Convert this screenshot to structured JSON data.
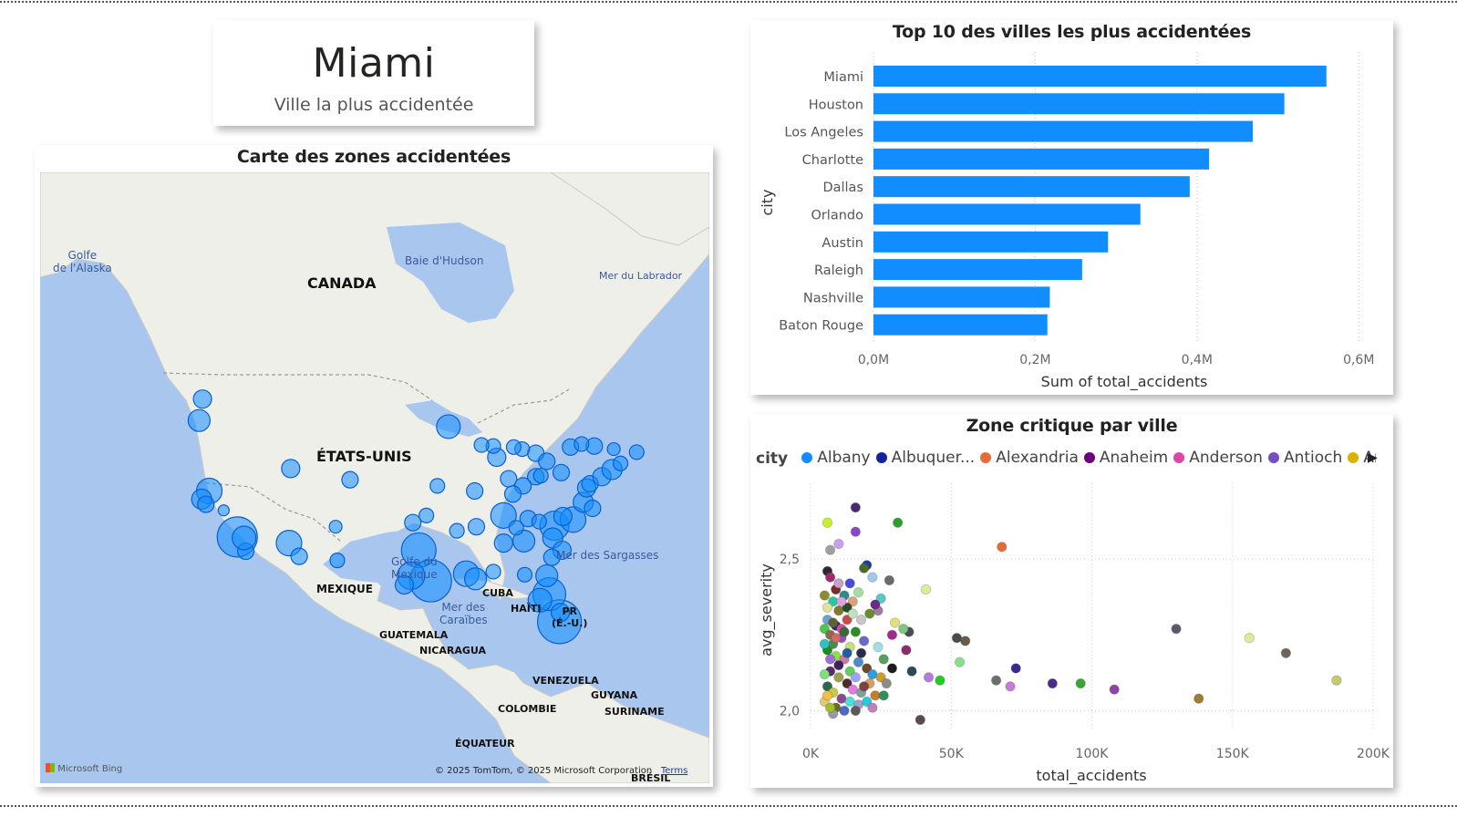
{
  "kpi": {
    "value": "Miami",
    "label": "Ville la plus accidentée"
  },
  "map": {
    "title": "Carte des zones accidentées",
    "labels": {
      "gulf_alaska": "Golfe\nde l'Alaska",
      "hudson": "Baie d'Hudson",
      "labrador": "Mer du Labrador",
      "canada": "CANADA",
      "usa": "ÉTATS-UNIS",
      "mexico_gulf": "Golfe du\nMexique",
      "mexico": "MEXIQUE",
      "sargasso": "Mer des Sargasses",
      "cuba": "CUBA",
      "haiti": "HAÏTI",
      "pr": "PR\n(É.-U.)",
      "caribbean": "Mer des\nCaraïbes",
      "guatemala": "GUATEMALA",
      "nicaragua": "NICARAGUA",
      "venezuela": "VENEZUELA",
      "guyana": "GUYANA",
      "suriname": "SURINAME",
      "colombia": "COLOMBIE",
      "ecuador": "ÉQUATEUR",
      "brazil": "BRÉSIL"
    },
    "logo": "Microsoft Bing",
    "copyright": "© 2025 TomTom, © 2025 Microsoft Corporation",
    "terms": "Terms",
    "colors": {
      "water": "#a9c7ee",
      "land": "#efefea",
      "bubble": "#118dff"
    },
    "bubbles": [
      {
        "lon": -122.3,
        "lat": 47.6,
        "size": 10
      },
      {
        "lon": -122.7,
        "lat": 45.5,
        "size": 12
      },
      {
        "lon": -121.5,
        "lat": 38.6,
        "size": 14
      },
      {
        "lon": -122.4,
        "lat": 37.8,
        "size": 11
      },
      {
        "lon": -121.9,
        "lat": 37.3,
        "size": 9
      },
      {
        "lon": -118.2,
        "lat": 34.1,
        "size": 22
      },
      {
        "lon": -117.2,
        "lat": 32.7,
        "size": 9
      },
      {
        "lon": -117.4,
        "lat": 34.0,
        "size": 13
      },
      {
        "lon": -119.8,
        "lat": 36.7,
        "size": 6
      },
      {
        "lon": -112.1,
        "lat": 33.5,
        "size": 14
      },
      {
        "lon": -110.9,
        "lat": 32.2,
        "size": 9
      },
      {
        "lon": -111.9,
        "lat": 40.8,
        "size": 10
      },
      {
        "lon": -104.9,
        "lat": 39.7,
        "size": 9
      },
      {
        "lon": -106.6,
        "lat": 35.1,
        "size": 7
      },
      {
        "lon": -106.4,
        "lat": 31.8,
        "size": 8
      },
      {
        "lon": -96.8,
        "lat": 32.8,
        "size": 19
      },
      {
        "lon": -95.4,
        "lat": 29.8,
        "size": 23
      },
      {
        "lon": -97.7,
        "lat": 30.3,
        "size": 15
      },
      {
        "lon": -98.5,
        "lat": 29.4,
        "size": 10
      },
      {
        "lon": -97.5,
        "lat": 35.5,
        "size": 9
      },
      {
        "lon": -95.9,
        "lat": 36.2,
        "size": 8
      },
      {
        "lon": -94.6,
        "lat": 39.1,
        "size": 8
      },
      {
        "lon": -93.3,
        "lat": 44.9,
        "size": 13
      },
      {
        "lon": -90.2,
        "lat": 38.6,
        "size": 9
      },
      {
        "lon": -91.2,
        "lat": 30.5,
        "size": 14
      },
      {
        "lon": -90.1,
        "lat": 30.0,
        "size": 12
      },
      {
        "lon": -90.0,
        "lat": 35.1,
        "size": 9
      },
      {
        "lon": -86.8,
        "lat": 36.2,
        "size": 14
      },
      {
        "lon": -86.8,
        "lat": 33.5,
        "size": 10
      },
      {
        "lon": -84.4,
        "lat": 33.7,
        "size": 12
      },
      {
        "lon": -80.8,
        "lat": 35.2,
        "size": 16
      },
      {
        "lon": -78.6,
        "lat": 35.8,
        "size": 14
      },
      {
        "lon": -79.8,
        "lat": 36.1,
        "size": 10
      },
      {
        "lon": -81.0,
        "lat": 34.0,
        "size": 11
      },
      {
        "lon": -80.2,
        "lat": 25.8,
        "size": 24
      },
      {
        "lon": -81.4,
        "lat": 28.5,
        "size": 18
      },
      {
        "lon": -82.5,
        "lat": 27.9,
        "size": 13
      },
      {
        "lon": -81.7,
        "lat": 30.3,
        "size": 12
      },
      {
        "lon": -80.1,
        "lat": 26.7,
        "size": 10
      },
      {
        "lon": -84.3,
        "lat": 30.4,
        "size": 8
      },
      {
        "lon": -87.6,
        "lat": 41.9,
        "size": 10
      },
      {
        "lon": -86.2,
        "lat": 39.8,
        "size": 9
      },
      {
        "lon": -83.0,
        "lat": 40.0,
        "size": 9
      },
      {
        "lon": -84.5,
        "lat": 39.1,
        "size": 9
      },
      {
        "lon": -83.0,
        "lat": 42.3,
        "size": 9
      },
      {
        "lon": -81.7,
        "lat": 41.5,
        "size": 9
      },
      {
        "lon": -80.0,
        "lat": 40.4,
        "size": 9
      },
      {
        "lon": -77.4,
        "lat": 37.5,
        "size": 11
      },
      {
        "lon": -76.3,
        "lat": 36.9,
        "size": 9
      },
      {
        "lon": -77.0,
        "lat": 38.9,
        "size": 10
      },
      {
        "lon": -76.6,
        "lat": 39.3,
        "size": 9
      },
      {
        "lon": -75.2,
        "lat": 40.0,
        "size": 10
      },
      {
        "lon": -74.0,
        "lat": 40.7,
        "size": 11
      },
      {
        "lon": -73.0,
        "lat": 41.3,
        "size": 8
      },
      {
        "lon": -71.1,
        "lat": 42.4,
        "size": 8
      },
      {
        "lon": -73.8,
        "lat": 42.7,
        "size": 7
      },
      {
        "lon": -76.1,
        "lat": 43.0,
        "size": 9
      },
      {
        "lon": -78.9,
        "lat": 42.9,
        "size": 9
      },
      {
        "lon": -88.0,
        "lat": 43.0,
        "size": 8
      },
      {
        "lon": -89.4,
        "lat": 43.1,
        "size": 8
      },
      {
        "lon": -85.7,
        "lat": 38.3,
        "size": 9
      },
      {
        "lon": -83.9,
        "lat": 35.9,
        "size": 9
      },
      {
        "lon": -82.6,
        "lat": 35.6,
        "size": 8
      },
      {
        "lon": -79.9,
        "lat": 32.8,
        "size": 10
      },
      {
        "lon": -81.1,
        "lat": 32.1,
        "size": 9
      },
      {
        "lon": -85.3,
        "lat": 35.0,
        "size": 8
      },
      {
        "lon": -92.3,
        "lat": 34.7,
        "size": 8
      },
      {
        "lon": -88.0,
        "lat": 30.7,
        "size": 8
      },
      {
        "lon": -82.4,
        "lat": 40.1,
        "size": 8
      },
      {
        "lon": -84.6,
        "lat": 42.7,
        "size": 8
      },
      {
        "lon": -85.6,
        "lat": 42.9,
        "size": 8
      },
      {
        "lon": -77.6,
        "lat": 43.2,
        "size": 8
      }
    ]
  },
  "bar_chart": {
    "title": "Top 10 des villes les plus accidentées",
    "ylabel": "city",
    "xlabel": "Sum of total_accidents",
    "ticks": [
      "0,0M",
      "0,2M",
      "0,4M",
      "0,6M"
    ],
    "color": "#118dff"
  },
  "scatter": {
    "title": "Zone critique par ville",
    "legend_title": "city",
    "legend": [
      {
        "name": "Albany",
        "color": "#118dff"
      },
      {
        "name": "Albuquer...",
        "color": "#12239e"
      },
      {
        "name": "Alexandria",
        "color": "#e66c37"
      },
      {
        "name": "Anaheim",
        "color": "#6b007b"
      },
      {
        "name": "Anderson",
        "color": "#e044a7"
      },
      {
        "name": "Antioch",
        "color": "#744ec2"
      },
      {
        "name": "Arlington",
        "color": "#d9b300"
      }
    ],
    "xlabel": "total_accidents",
    "ylabel": "avg_severity",
    "xticks": [
      "0K",
      "50K",
      "100K",
      "150K",
      "200K"
    ],
    "yticks": [
      "2,0",
      "2,5"
    ]
  },
  "chart_data": [
    {
      "type": "bar",
      "title": "Top 10 des villes les plus accidentées",
      "xlabel": "Sum of total_accidents",
      "ylabel": "city",
      "categories": [
        "Miami",
        "Houston",
        "Los Angeles",
        "Charlotte",
        "Dallas",
        "Orlando",
        "Austin",
        "Raleigh",
        "Nashville",
        "Baton Rouge"
      ],
      "values": [
        560000,
        508000,
        469000,
        415000,
        391000,
        330000,
        290000,
        258000,
        218000,
        215000
      ],
      "xlim": [
        0,
        620000
      ],
      "grid": true
    },
    {
      "type": "scatter",
      "title": "Zone critique par ville",
      "xlabel": "total_accidents",
      "ylabel": "avg_severity",
      "xlim": [
        0,
        200000
      ],
      "ylim": [
        1.8,
        2.75
      ],
      "grid": true,
      "legend_placement": "top",
      "points": [
        {
          "x": 68000,
          "y": 2.54,
          "color": "#e66c37"
        },
        {
          "x": 130000,
          "y": 2.27,
          "color": "#5a5a6e"
        },
        {
          "x": 156000,
          "y": 2.24,
          "color": "#d6ef9a"
        },
        {
          "x": 169000,
          "y": 2.19,
          "color": "#6e6458"
        },
        {
          "x": 187000,
          "y": 2.1,
          "color": "#c8c86e"
        },
        {
          "x": 138000,
          "y": 2.04,
          "color": "#a07c2c"
        },
        {
          "x": 108000,
          "y": 2.07,
          "color": "#8c44a8"
        },
        {
          "x": 96000,
          "y": 2.09,
          "color": "#3aa63a"
        },
        {
          "x": 86000,
          "y": 2.09,
          "color": "#4a2a8c"
        },
        {
          "x": 73000,
          "y": 2.14,
          "color": "#3a2a8c"
        },
        {
          "x": 71000,
          "y": 2.08,
          "color": "#c87cd8"
        },
        {
          "x": 66000,
          "y": 2.1,
          "color": "#6e6e6e"
        },
        {
          "x": 53000,
          "y": 2.16,
          "color": "#8ae08a"
        },
        {
          "x": 52000,
          "y": 2.24,
          "color": "#4a4a4a"
        },
        {
          "x": 55000,
          "y": 2.23,
          "color": "#6a5a4a"
        },
        {
          "x": 41000,
          "y": 2.4,
          "color": "#d6f09a"
        },
        {
          "x": 31000,
          "y": 2.62,
          "color": "#2aa02a"
        },
        {
          "x": 39000,
          "y": 1.97,
          "color": "#5a4a4a"
        },
        {
          "x": 42000,
          "y": 2.11,
          "color": "#b27cd8"
        },
        {
          "x": 46000,
          "y": 2.1,
          "color": "#22cc22"
        },
        {
          "x": 35000,
          "y": 2.26,
          "color": "#4a4a5a"
        },
        {
          "x": 34000,
          "y": 2.2,
          "color": "#8c2a6e"
        },
        {
          "x": 36000,
          "y": 2.13,
          "color": "#2a4a5a"
        },
        {
          "x": 33000,
          "y": 2.27,
          "color": "#7cc87c"
        },
        {
          "x": 30000,
          "y": 2.29,
          "color": "#e0e07c"
        },
        {
          "x": 29000,
          "y": 2.25,
          "color": "#a02a8c"
        },
        {
          "x": 28000,
          "y": 2.43,
          "color": "#6a6a6a"
        },
        {
          "x": 25000,
          "y": 2.37,
          "color": "#5ac8c8"
        },
        {
          "x": 24000,
          "y": 2.33,
          "color": "#a07ca0"
        },
        {
          "x": 23000,
          "y": 2.35,
          "color": "#6a2a8c"
        },
        {
          "x": 22000,
          "y": 2.44,
          "color": "#a0c8f0"
        },
        {
          "x": 20000,
          "y": 2.48,
          "color": "#1c3aa0"
        },
        {
          "x": 19000,
          "y": 2.47,
          "color": "#4a6a2a"
        },
        {
          "x": 16000,
          "y": 2.59,
          "color": "#8c44c8"
        },
        {
          "x": 16000,
          "y": 2.67,
          "color": "#4a2a6e"
        },
        {
          "x": 6000,
          "y": 2.62,
          "color": "#c8f02a"
        },
        {
          "x": 7000,
          "y": 2.53,
          "color": "#a0a0a0"
        },
        {
          "x": 10000,
          "y": 2.55,
          "color": "#c8a0f0"
        },
        {
          "x": 6000,
          "y": 2.46,
          "color": "#2a2a2a"
        },
        {
          "x": 7000,
          "y": 2.44,
          "color": "#a02a6e"
        },
        {
          "x": 9000,
          "y": 2.4,
          "color": "#7c2a2a"
        },
        {
          "x": 12000,
          "y": 2.38,
          "color": "#2a8c8c"
        },
        {
          "x": 14000,
          "y": 2.42,
          "color": "#4a4ae0"
        },
        {
          "x": 17000,
          "y": 2.39,
          "color": "#a0e0a0"
        },
        {
          "x": 15000,
          "y": 2.36,
          "color": "#e0a07c"
        },
        {
          "x": 21000,
          "y": 2.32,
          "color": "#6a8c2a"
        },
        {
          "x": 18000,
          "y": 2.3,
          "color": "#c8c8c8"
        },
        {
          "x": 8000,
          "y": 2.36,
          "color": "#2ac8a0"
        },
        {
          "x": 5000,
          "y": 2.38,
          "color": "#8c8c2a"
        },
        {
          "x": 6000,
          "y": 2.34,
          "color": "#e0e0a0"
        },
        {
          "x": 10000,
          "y": 2.33,
          "color": "#7c7c2a"
        },
        {
          "x": 13000,
          "y": 2.3,
          "color": "#c84a4a"
        },
        {
          "x": 9000,
          "y": 2.28,
          "color": "#2a2a8c"
        },
        {
          "x": 5000,
          "y": 2.27,
          "color": "#4ac84a"
        },
        {
          "x": 7000,
          "y": 2.25,
          "color": "#8c6a4a"
        },
        {
          "x": 11000,
          "y": 2.24,
          "color": "#a04ac8"
        },
        {
          "x": 16000,
          "y": 2.26,
          "color": "#2a8c2a"
        },
        {
          "x": 19000,
          "y": 2.23,
          "color": "#6a6ac8"
        },
        {
          "x": 14000,
          "y": 2.21,
          "color": "#c8e07c"
        },
        {
          "x": 6000,
          "y": 2.2,
          "color": "#1c8c1c"
        },
        {
          "x": 9000,
          "y": 2.18,
          "color": "#8ce04a"
        },
        {
          "x": 12000,
          "y": 2.17,
          "color": "#c87ca0"
        },
        {
          "x": 17000,
          "y": 2.16,
          "color": "#4a8cc8"
        },
        {
          "x": 20000,
          "y": 2.14,
          "color": "#6a4a2a"
        },
        {
          "x": 22000,
          "y": 2.12,
          "color": "#2aa0e0"
        },
        {
          "x": 25000,
          "y": 2.11,
          "color": "#c8a02a"
        },
        {
          "x": 27000,
          "y": 2.09,
          "color": "#8c8c8c"
        },
        {
          "x": 7000,
          "y": 2.13,
          "color": "#5a2a6e"
        },
        {
          "x": 10000,
          "y": 2.11,
          "color": "#a0a04a"
        },
        {
          "x": 13000,
          "y": 2.09,
          "color": "#4a2a2a"
        },
        {
          "x": 15000,
          "y": 2.07,
          "color": "#e07ce0"
        },
        {
          "x": 18000,
          "y": 2.06,
          "color": "#7ca0a0"
        },
        {
          "x": 6000,
          "y": 2.08,
          "color": "#2a6a4a"
        },
        {
          "x": 8000,
          "y": 2.06,
          "color": "#c8c84a"
        },
        {
          "x": 11000,
          "y": 2.04,
          "color": "#8c4a8c"
        },
        {
          "x": 14000,
          "y": 2.03,
          "color": "#4ae0e0"
        },
        {
          "x": 17000,
          "y": 2.02,
          "color": "#a0a0c8"
        },
        {
          "x": 20000,
          "y": 2.03,
          "color": "#2ac8e0"
        },
        {
          "x": 23000,
          "y": 2.05,
          "color": "#c87c2a"
        },
        {
          "x": 5000,
          "y": 2.03,
          "color": "#e0c87c"
        },
        {
          "x": 9000,
          "y": 2.01,
          "color": "#6a6a2a"
        },
        {
          "x": 12000,
          "y": 2.0,
          "color": "#4a6ac8"
        },
        {
          "x": 16000,
          "y": 2.0,
          "color": "#5a5a5a"
        },
        {
          "x": 7000,
          "y": 2.17,
          "color": "#a06ae0"
        },
        {
          "x": 8000,
          "y": 2.22,
          "color": "#4a8c4a"
        },
        {
          "x": 11000,
          "y": 2.27,
          "color": "#e04a8c"
        },
        {
          "x": 13000,
          "y": 2.34,
          "color": "#2a4a2a"
        },
        {
          "x": 10000,
          "y": 2.42,
          "color": "#c8a0c8"
        },
        {
          "x": 5000,
          "y": 2.12,
          "color": "#7ce07c"
        },
        {
          "x": 18000,
          "y": 2.19,
          "color": "#2a2a4a"
        },
        {
          "x": 24000,
          "y": 2.21,
          "color": "#a0e0e0"
        },
        {
          "x": 26000,
          "y": 2.17,
          "color": "#5aa05a"
        },
        {
          "x": 21000,
          "y": 2.09,
          "color": "#d8a060"
        },
        {
          "x": 29000,
          "y": 2.14,
          "color": "#1c1c1c"
        },
        {
          "x": 8000,
          "y": 1.99,
          "color": "#9a9aa0"
        },
        {
          "x": 12000,
          "y": 2.26,
          "color": "#3a6a3a"
        },
        {
          "x": 15000,
          "y": 2.32,
          "color": "#c0e0c0"
        },
        {
          "x": 6000,
          "y": 2.3,
          "color": "#70a0d0"
        },
        {
          "x": 9000,
          "y": 2.24,
          "color": "#d06a6a"
        },
        {
          "x": 7000,
          "y": 2.01,
          "color": "#a0c02a"
        },
        {
          "x": 10000,
          "y": 2.15,
          "color": "#402060"
        },
        {
          "x": 14000,
          "y": 2.13,
          "color": "#60d060"
        },
        {
          "x": 16000,
          "y": 2.11,
          "color": "#a0a0ff"
        },
        {
          "x": 19000,
          "y": 2.08,
          "color": "#804040"
        },
        {
          "x": 22000,
          "y": 2.01,
          "color": "#c080c0"
        },
        {
          "x": 26000,
          "y": 2.05,
          "color": "#309060"
        },
        {
          "x": 11000,
          "y": 2.36,
          "color": "#e0a0e0"
        },
        {
          "x": 13000,
          "y": 2.19,
          "color": "#2060a0"
        },
        {
          "x": 6000,
          "y": 2.05,
          "color": "#f0c040"
        },
        {
          "x": 8000,
          "y": 2.29,
          "color": "#606030"
        },
        {
          "x": 5000,
          "y": 2.22,
          "color": "#30c0c0"
        }
      ]
    }
  ]
}
